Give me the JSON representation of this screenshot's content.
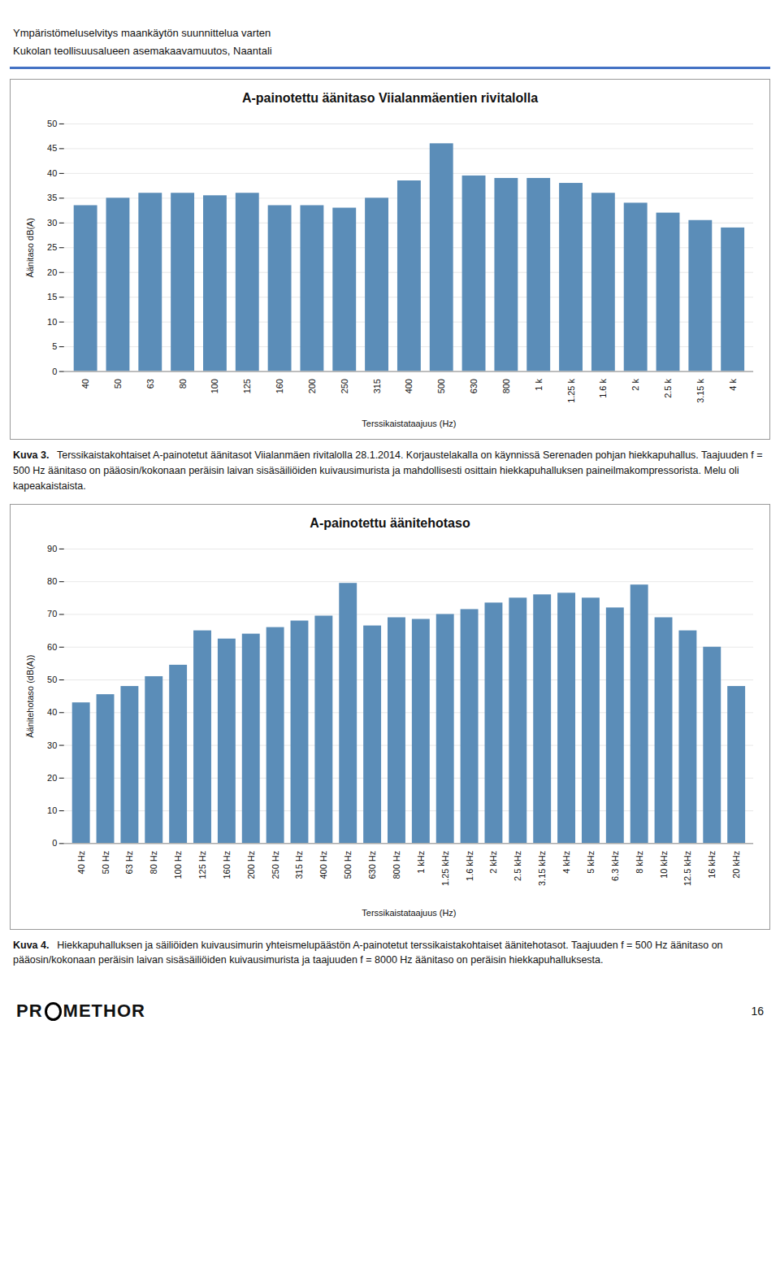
{
  "header": [
    "Ympäristömeluselvitys maankäytön suunnittelua varten",
    "Kukolan teollisuusalueen asemakaavamuutos, Naantali"
  ],
  "chart_data": [
    {
      "type": "bar",
      "title": "A-painotettu äänitaso Viialanmäentien rivitalolla",
      "ylabel": "Äänitaso dB(A)",
      "xlabel": "Terssikaistataajuus (Hz)",
      "categories": [
        "40",
        "50",
        "63",
        "80",
        "100",
        "125",
        "160",
        "200",
        "250",
        "315",
        "400",
        "500",
        "630",
        "800",
        "1 k",
        "1.25 k",
        "1.6 k",
        "2 k",
        "2.5 k",
        "3.15 k",
        "4 k"
      ],
      "values": [
        33.5,
        35.0,
        36.0,
        36.0,
        35.5,
        36.0,
        33.5,
        33.5,
        33.0,
        35.0,
        38.5,
        46.0,
        39.5,
        39.0,
        39.0,
        38.0,
        36.0,
        34.0,
        32.0,
        30.5,
        29.0
      ],
      "color": "#5B8DB8",
      "ylim": [
        0,
        50
      ],
      "yticks": [
        0,
        5,
        10,
        15,
        20,
        25,
        30,
        35,
        40,
        45,
        50
      ],
      "grid": true,
      "caption": "Kuva 3.  Terssikaistakohtaiset A-painotetut äänitasot Viialanmäen rivitalolla 28.1.2014. Korjaustelakalla on käynnissä Serenaden pohjan hiekkapuhallus. Taajuuden f = 500 Hz äänitaso on pääosin/kokonaan peräisin laivan sisäsäiliöiden kuivausimurista ja mahdollisesti osittain hiekkapuhalluksen paineilmakompressorista. Melu oli kapeakaistaista."
    },
    {
      "type": "bar",
      "title": "A-painotettu äänitehotaso",
      "ylabel": "Äänitehotaso (dB(A))",
      "xlabel": "Terssikaistataajuus (Hz)",
      "categories": [
        "40 Hz",
        "50 Hz",
        "63 Hz",
        "80 Hz",
        "100 Hz",
        "125 Hz",
        "160 Hz",
        "200 Hz",
        "250 Hz",
        "315 Hz",
        "400 Hz",
        "500 Hz",
        "630 Hz",
        "800 Hz",
        "1 kHz",
        "1.25 kHz",
        "1.6 kHz",
        "2 kHz",
        "2.5 kHz",
        "3.15 kHz",
        "4 kHz",
        "5 kHz",
        "6.3 kHz",
        "8 kHz",
        "10 kHz",
        "12.5 kHz",
        "16 kHz",
        "20 kHz"
      ],
      "values": [
        43.0,
        45.5,
        48.0,
        51.0,
        54.5,
        65.0,
        62.5,
        64.0,
        66.0,
        68.0,
        69.5,
        79.5,
        66.5,
        69.0,
        68.5,
        70.0,
        71.5,
        73.5,
        75.0,
        76.0,
        76.5,
        75.0,
        72.0,
        79.0,
        69.0,
        65.0,
        60.0,
        48.0
      ],
      "color": "#5B8DB8",
      "ylim": [
        0,
        90
      ],
      "yticks": [
        0,
        10,
        20,
        30,
        40,
        50,
        60,
        70,
        80,
        90
      ],
      "grid": true,
      "caption": "Kuva 4.  Hiekkapuhalluksen ja säiliöiden kuivausimurin yhteismelupäästön A-painotetut terssikaistakohtaiset äänitehotasot. Taajuuden f = 500 Hz äänitaso on pääosin/kokonaan peräisin laivan sisäsäiliöiden kuivausimurista ja taajuuden f = 8000 Hz äänitaso on peräisin hiekkapuhalluksesta."
    }
  ],
  "footer": {
    "logo": [
      "PR",
      "METHOR"
    ],
    "page": "16"
  }
}
